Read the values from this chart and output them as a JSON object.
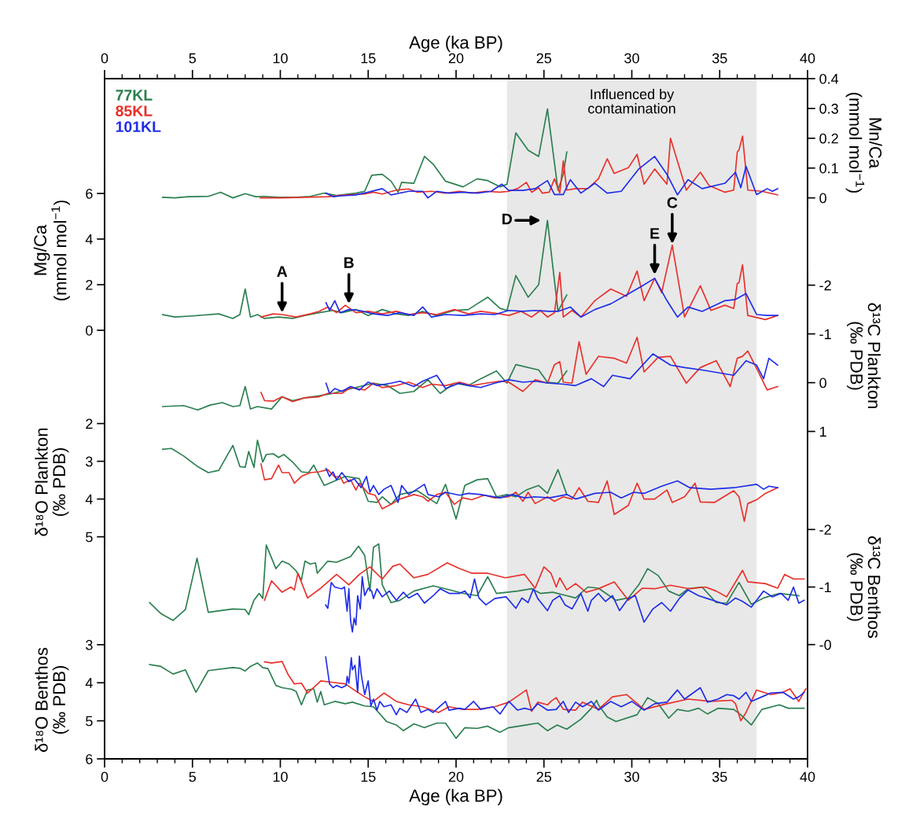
{
  "chart_data": [
    {
      "type": "line",
      "xlabel": "Age (ka BP)",
      "y2label": "Mn/Ca\n(mmol mol$^{−1}$)",
      "xlim": [
        0,
        40
      ],
      "xticks": [
        0,
        5,
        10,
        15,
        20,
        25,
        30,
        35,
        40
      ],
      "y2lim": [
        -0.03,
        0.4
      ],
      "y2ticks": [
        0,
        0.1,
        0.2,
        0.3,
        0.4
      ],
      "legend": "top left",
      "bands": [
        {
          "axis": "x",
          "from": 22.9,
          "to": 37.1,
          "label": "Influenced by\ncontamination",
          "color": "#e8e8e8"
        }
      ],
      "series": [
        {
          "name": "77KL",
          "color": "#2a7f4f",
          "axis": "y2",
          "x": [
            3.3,
            4.0,
            4.75,
            5.9,
            6.6,
            7.3,
            8.0,
            8.6,
            9.1,
            9.9,
            10.9,
            11.7,
            12.5,
            13.2,
            14.3,
            14.8,
            15.2,
            15.8,
            16.3,
            16.7,
            16.9,
            17.6,
            18.2,
            18.7,
            19.4,
            20.4,
            21.2,
            21.8,
            22.5,
            22.9,
            23.4,
            24.1,
            24.7,
            25.2,
            25.8,
            26.1,
            26.3
          ],
          "values": [
            0.002,
            0.0,
            0.004,
            0.005,
            0.019,
            0.0,
            0.014,
            0.004,
            0.005,
            0.002,
            0.002,
            0.005,
            0.016,
            0.008,
            0.016,
            0.022,
            0.076,
            0.079,
            0.056,
            0.019,
            0.052,
            0.049,
            0.139,
            0.113,
            0.056,
            0.037,
            0.064,
            0.058,
            0.037,
            0.046,
            0.218,
            0.16,
            0.139,
            0.298,
            0.026,
            0.079,
            0.154
          ]
        },
        {
          "name": "85KL",
          "color": "#e8302a",
          "axis": "y2",
          "x": [
            8.86,
            10.1,
            11.4,
            12.7,
            13.7,
            14.8,
            15.3,
            15.8,
            16.6,
            17.3,
            17.8,
            18.6,
            19.4,
            20.2,
            20.9,
            21.7,
            22.5,
            23.0,
            23.5,
            24.0,
            24.3,
            24.7,
            24.9,
            25.3,
            25.6,
            25.9,
            26.1,
            26.3,
            26.8,
            27.5,
            28.1,
            28.6,
            29.0,
            29.8,
            30.3,
            30.7,
            31.3,
            32.0,
            32.2,
            33.1,
            33.9,
            34.4,
            35.3,
            35.8,
            36.0,
            36.1,
            36.3,
            36.6,
            37.4,
            38.3
          ],
          "values": [
            0.0,
            0.0,
            0.002,
            0.004,
            0.01,
            0.013,
            0.019,
            0.013,
            0.026,
            0.03,
            0.019,
            0.022,
            0.016,
            0.022,
            0.016,
            0.022,
            0.019,
            0.022,
            0.031,
            0.052,
            0.019,
            0.034,
            0.016,
            0.019,
            0.064,
            0.016,
            0.124,
            0.026,
            0.031,
            0.031,
            0.064,
            0.131,
            0.082,
            0.101,
            0.146,
            0.046,
            0.097,
            0.046,
            0.2,
            0.026,
            0.086,
            0.041,
            0.019,
            0.026,
            0.154,
            0.161,
            0.207,
            0.026,
            0.022,
            0.01
          ]
        },
        {
          "name": "101KL",
          "color": "#1f2de8",
          "axis": "y2",
          "x": [
            12.6,
            13.0,
            13.5,
            14.3,
            15.0,
            15.8,
            16.3,
            17.3,
            18.1,
            18.4,
            18.9,
            19.6,
            20.4,
            21.2,
            22.0,
            22.6,
            23.0,
            23.8,
            24.5,
            25.2,
            25.6,
            26.1,
            26.5,
            27.1,
            27.9,
            28.6,
            29.4,
            30.4,
            31.3,
            32.0,
            32.6,
            33.2,
            34.0,
            35.3,
            35.9,
            36.2,
            36.5,
            37.1,
            37.7,
            38.0,
            38.3
          ],
          "values": [
            0.016,
            0.004,
            0.007,
            0.01,
            0.019,
            0.031,
            0.01,
            0.022,
            0.022,
            0.0,
            0.022,
            0.016,
            0.019,
            0.016,
            0.022,
            0.046,
            0.025,
            0.025,
            0.031,
            0.058,
            0.011,
            0.011,
            0.061,
            0.016,
            0.049,
            0.016,
            0.022,
            0.097,
            0.139,
            0.079,
            0.01,
            0.061,
            0.031,
            0.049,
            0.086,
            0.034,
            0.106,
            0.011,
            0.031,
            0.022,
            0.031
          ]
        }
      ]
    },
    {
      "type": "line",
      "ylabel": "Mg/Ca\n(mmol mol$^{−1}$)",
      "xlim": [
        0,
        40
      ],
      "ylim": [
        0,
        7
      ],
      "yticks": [
        0,
        2,
        4,
        6
      ],
      "tick_labels": "y",
      "annotations": [
        {
          "text": "A",
          "x": 10.1,
          "y": 0.77
        },
        {
          "text": "B",
          "x": 13.9,
          "y": 1.16
        },
        {
          "text": "D",
          "x": 25.2,
          "y": 4.82
        },
        {
          "text": "E",
          "x": 31.3,
          "y": 2.44
        },
        {
          "text": "C",
          "x": 32.3,
          "y": 3.79
        }
      ],
      "series": [
        {
          "color": "#2a7f4f",
          "x": [
            3.3,
            4.0,
            5.0,
            6.5,
            7.3,
            7.7,
            8.0,
            8.3,
            8.7,
            9.1,
            9.9,
            10.7,
            11.4,
            12.2,
            13.0,
            13.5,
            14.3,
            15.0,
            15.8,
            16.6,
            17.3,
            18.1,
            18.9,
            19.9,
            20.7,
            21.2,
            21.8,
            22.5,
            22.9,
            23.4,
            24.1,
            24.7,
            25.2,
            25.8,
            26.3
          ],
          "values": [
            0.69,
            0.58,
            0.63,
            0.72,
            0.52,
            0.69,
            1.81,
            0.58,
            0.69,
            0.52,
            0.58,
            0.52,
            0.65,
            0.77,
            0.87,
            0.77,
            0.91,
            0.65,
            0.91,
            0.72,
            0.65,
            0.83,
            0.65,
            0.87,
            0.91,
            1.16,
            1.45,
            0.96,
            0.87,
            2.4,
            1.45,
            2.0,
            4.82,
            0.83,
            1.55
          ]
        },
        {
          "color": "#e8302a",
          "x": [
            8.9,
            9.6,
            10.1,
            10.9,
            11.7,
            12.2,
            12.7,
            13.2,
            13.7,
            14.3,
            15.0,
            15.8,
            16.6,
            17.3,
            18.1,
            18.9,
            19.9,
            20.7,
            21.4,
            22.5,
            23.0,
            23.7,
            24.3,
            24.8,
            25.2,
            25.6,
            25.9,
            26.1,
            26.6,
            27.1,
            27.9,
            28.8,
            29.7,
            30.3,
            30.7,
            31.3,
            31.7,
            32.3,
            33.0,
            33.9,
            34.5,
            35.3,
            35.8,
            36.0,
            36.1,
            36.3,
            36.6,
            37.6,
            38.3
          ],
          "values": [
            0.58,
            0.72,
            0.69,
            0.58,
            0.72,
            0.83,
            1.02,
            0.77,
            1.1,
            0.77,
            0.83,
            0.72,
            0.83,
            0.69,
            0.77,
            0.69,
            0.91,
            0.72,
            0.83,
            0.72,
            0.65,
            0.83,
            0.58,
            0.87,
            0.58,
            0.77,
            2.54,
            0.58,
            0.87,
            0.58,
            1.3,
            1.81,
            1.49,
            2.6,
            1.3,
            2.28,
            1.65,
            3.73,
            0.58,
            1.95,
            0.87,
            1.1,
            0.96,
            2.05,
            2.09,
            2.87,
            0.65,
            0.47,
            0.65
          ]
        },
        {
          "color": "#1f2de8",
          "x": [
            12.6,
            12.8,
            13.1,
            13.4,
            13.9,
            14.5,
            15.3,
            16.1,
            16.8,
            17.6,
            18.1,
            18.6,
            19.4,
            20.4,
            21.4,
            22.2,
            23.0,
            23.8,
            24.5,
            25.3,
            25.8,
            26.5,
            27.1,
            27.9,
            28.8,
            29.7,
            30.6,
            31.3,
            32.0,
            32.6,
            33.2,
            34.0,
            35.3,
            35.9,
            36.5,
            37.1,
            37.7,
            38.3
          ],
          "values": [
            1.21,
            0.87,
            1.3,
            0.77,
            0.91,
            0.87,
            0.72,
            0.65,
            0.77,
            0.65,
            1.02,
            0.58,
            0.69,
            0.65,
            0.72,
            0.69,
            0.87,
            0.83,
            0.87,
            0.83,
            0.83,
            1.02,
            0.58,
            0.91,
            1.16,
            1.55,
            1.95,
            2.28,
            1.3,
            0.58,
            1.02,
            0.83,
            1.3,
            1.35,
            1.61,
            0.69,
            0.65,
            0.65
          ]
        }
      ]
    },
    {
      "type": "line",
      "y2label": "δ¹³C Plankton\n(‰ PDB)",
      "xlim": [
        0,
        40
      ],
      "y2lim": [
        1.2,
        -2.3
      ],
      "y2ticks": [
        -2,
        -1,
        0,
        1
      ],
      "tick_labels": "y",
      "series": [
        {
          "color": "#2a7f4f",
          "axis": "y2",
          "x": [
            3.3,
            4.5,
            5.3,
            6.0,
            6.7,
            7.3,
            7.7,
            8.0,
            8.3,
            8.7,
            9.5,
            10.1,
            10.7,
            11.4,
            12.2,
            13.0,
            13.7,
            14.3,
            15.3,
            16.1,
            16.8,
            17.6,
            18.4,
            19.1,
            19.9,
            20.7,
            21.4,
            22.3,
            22.9,
            23.4,
            24.7,
            25.2,
            25.8,
            26.3
          ],
          "values": [
            0.49,
            0.47,
            0.56,
            0.46,
            0.41,
            0.49,
            0.47,
            0.08,
            0.54,
            0.49,
            0.54,
            0.29,
            0.37,
            0.31,
            0.27,
            0.22,
            0.15,
            0.1,
            0.01,
            0.06,
            0.22,
            0.18,
            -0.06,
            0.22,
            0.01,
            0.06,
            -0.08,
            -0.24,
            0.01,
            -0.37,
            -0.26,
            -0.01,
            0.01,
            -0.24
          ]
        },
        {
          "color": "#e8302a",
          "axis": "y2",
          "x": [
            8.9,
            9.1,
            9.6,
            10.1,
            10.7,
            11.4,
            12.2,
            12.7,
            13.5,
            14.0,
            14.8,
            15.3,
            15.8,
            16.6,
            17.3,
            18.1,
            18.6,
            19.4,
            20.2,
            20.9,
            21.7,
            22.5,
            23.0,
            23.8,
            24.5,
            25.2,
            25.6,
            25.9,
            26.1,
            26.6,
            27.0,
            27.4,
            28.1,
            29.0,
            29.7,
            30.3,
            30.7,
            31.5,
            32.2,
            33.1,
            33.9,
            34.8,
            35.6,
            36.0,
            36.3,
            36.6,
            37.2,
            37.7,
            38.3
          ],
          "values": [
            0.2,
            0.37,
            0.38,
            0.29,
            0.39,
            0.31,
            0.29,
            0.22,
            0.22,
            0.1,
            0.15,
            0.01,
            0.1,
            0.06,
            -0.01,
            0.1,
            0.03,
            0.06,
            -0.01,
            0.06,
            0.01,
            -0.03,
            -0.01,
            0.18,
            -0.06,
            0.01,
            -0.37,
            -0.43,
            -0.01,
            0.01,
            -0.84,
            -0.17,
            -0.54,
            -0.5,
            -0.4,
            -0.93,
            -0.22,
            -0.52,
            -0.54,
            0.01,
            -0.31,
            -0.45,
            0.08,
            -0.5,
            -0.54,
            -0.65,
            -0.22,
            0.15,
            0.08
          ]
        },
        {
          "color": "#1f2de8",
          "axis": "y2",
          "x": [
            12.6,
            12.8,
            13.1,
            13.5,
            14.0,
            14.5,
            15.0,
            15.5,
            16.3,
            16.8,
            17.6,
            18.1,
            18.9,
            19.4,
            20.2,
            20.7,
            21.4,
            22.2,
            23.0,
            23.8,
            24.5,
            25.3,
            26.1,
            26.8,
            27.7,
            28.4,
            28.9,
            29.9,
            31.2,
            32.2,
            33.0,
            34.0,
            35.8,
            36.5,
            37.1,
            37.5,
            37.8,
            38.3
          ],
          "values": [
            0.01,
            0.22,
            0.12,
            0.18,
            0.08,
            0.15,
            -0.01,
            0.06,
            0.01,
            -0.03,
            0.08,
            -0.03,
            -0.15,
            0.12,
            0.01,
            0.06,
            0.1,
            0.01,
            -0.06,
            -0.01,
            -0.03,
            0.01,
            0.03,
            0.06,
            -0.08,
            0.08,
            -0.15,
            -0.08,
            -0.59,
            -0.36,
            -0.31,
            -0.26,
            -0.15,
            -0.45,
            -0.36,
            -0.08,
            -0.5,
            -0.36
          ]
        }
      ]
    },
    {
      "type": "line",
      "ylabel": "δ¹⁸O Plankton\n(‰ PDB)",
      "xlim": [
        0,
        40
      ],
      "ylim": [
        5.3,
        1.8
      ],
      "yticks": [
        2,
        3,
        4,
        5
      ],
      "tick_labels": "y",
      "series": [
        {
          "color": "#2a7f4f",
          "x": [
            3.3,
            3.8,
            4.5,
            5.3,
            5.9,
            6.5,
            7.3,
            7.7,
            8.0,
            8.2,
            8.5,
            8.7,
            9.0,
            9.2,
            9.6,
            9.9,
            10.2,
            10.7,
            11.2,
            11.6,
            11.9,
            12.5,
            13.0,
            13.7,
            14.5,
            15.0,
            15.5,
            15.8,
            16.3,
            16.8,
            17.8,
            18.9,
            19.4,
            20.0,
            20.5,
            21.2,
            21.8,
            22.3,
            22.9,
            23.4,
            24.0,
            24.7,
            25.2,
            25.8,
            26.3
          ],
          "values": [
            2.68,
            2.66,
            2.86,
            3.14,
            3.3,
            3.24,
            2.58,
            3.14,
            3.16,
            2.74,
            3.16,
            2.44,
            3.02,
            2.82,
            2.8,
            2.9,
            2.82,
            3.02,
            3.28,
            3.3,
            3.1,
            3.64,
            3.54,
            3.4,
            3.46,
            4.06,
            4.09,
            3.94,
            4.14,
            3.88,
            3.78,
            4.12,
            3.61,
            4.53,
            3.64,
            3.49,
            3.46,
            3.94,
            3.88,
            3.94,
            3.76,
            3.64,
            3.85,
            3.22,
            3.88
          ]
        },
        {
          "color": "#e8302a",
          "x": [
            8.9,
            9.1,
            9.5,
            9.9,
            10.1,
            10.5,
            10.8,
            11.2,
            11.7,
            12.2,
            12.7,
            13.1,
            13.4,
            13.6,
            14.0,
            14.3,
            14.5,
            15.0,
            15.4,
            15.8,
            16.3,
            16.8,
            17.6,
            18.1,
            18.4,
            18.9,
            19.4,
            19.9,
            20.4,
            20.9,
            21.6,
            22.2,
            23.0,
            23.4,
            23.8,
            24.1,
            24.5,
            25.2,
            25.6,
            26.1,
            26.6,
            27.0,
            27.5,
            28.1,
            28.6,
            29.0,
            29.8,
            30.3,
            30.7,
            31.3,
            32.0,
            32.3,
            33.0,
            33.6,
            33.9,
            34.7,
            35.8,
            36.1,
            36.4,
            36.6,
            37.1,
            37.6,
            38.3
          ],
          "values": [
            3.07,
            3.49,
            3.46,
            3.1,
            3.3,
            3.3,
            3.58,
            3.4,
            3.3,
            3.28,
            3.22,
            3.42,
            3.4,
            3.58,
            3.49,
            3.76,
            3.58,
            3.85,
            3.9,
            4.26,
            4.14,
            4.0,
            3.88,
            3.94,
            4.06,
            3.88,
            3.82,
            4.14,
            3.97,
            4.02,
            3.9,
            3.97,
            3.94,
            3.82,
            4.06,
            3.82,
            4.12,
            3.94,
            4.06,
            3.94,
            4.0,
            3.7,
            4.06,
            4.09,
            3.52,
            4.41,
            4.17,
            3.58,
            4.0,
            4.0,
            3.76,
            4.09,
            3.94,
            3.58,
            4.08,
            4.09,
            3.78,
            3.94,
            4.59,
            4.12,
            4.02,
            3.85,
            3.7
          ]
        },
        {
          "color": "#1f2de8",
          "x": [
            12.6,
            12.8,
            13.0,
            13.2,
            13.5,
            13.9,
            14.2,
            14.6,
            14.9,
            15.1,
            15.3,
            15.6,
            15.9,
            16.3,
            16.7,
            16.9,
            17.3,
            18.2,
            18.4,
            19.0,
            19.4,
            20.2,
            20.7,
            21.4,
            22.5,
            23.2,
            23.9,
            24.5,
            25.3,
            26.3,
            26.8,
            27.9,
            28.8,
            29.4,
            30.1,
            30.7,
            31.7,
            32.6,
            33.3,
            34.5,
            35.8,
            37.1,
            37.5,
            37.8,
            38.3
          ],
          "values": [
            3.19,
            3.4,
            3.28,
            3.49,
            3.3,
            3.54,
            3.46,
            3.7,
            3.4,
            3.82,
            3.64,
            3.88,
            3.74,
            3.64,
            4.09,
            3.64,
            3.88,
            3.61,
            3.88,
            3.94,
            3.82,
            3.9,
            3.85,
            3.88,
            3.97,
            3.88,
            3.97,
            3.94,
            3.97,
            3.88,
            4.0,
            3.85,
            3.82,
            3.97,
            3.82,
            3.85,
            3.66,
            3.52,
            3.7,
            3.74,
            3.7,
            3.61,
            3.74,
            3.66,
            3.7
          ]
        }
      ]
    },
    {
      "type": "line",
      "y2label": "δ¹³C Benthos\n(‰ PDB)",
      "xlim": [
        0,
        40
      ],
      "y2lim": [
        0.1,
        -2.1
      ],
      "y2ticks": [
        -2,
        -1,
        {
          "value": 0,
          "label": "-0"
        }
      ],
      "tick_labels": "y",
      "series": [
        {
          "color": "#2a7f4f",
          "axis": "y2",
          "x": [
            2.56,
            3.2,
            3.9,
            4.6,
            5.26,
            5.9,
            7.3,
            8.0,
            8.2,
            8.5,
            8.8,
            9.0,
            9.2,
            9.75,
            10.1,
            10.5,
            10.9,
            11.2,
            11.4,
            11.7,
            12.0,
            12.1,
            12.7,
            13.2,
            14.0,
            14.45,
            14.8,
            15.1,
            15.3,
            15.6,
            15.8,
            16.3,
            16.8,
            17.6,
            18.7,
            19.4,
            20.4,
            21.2,
            21.8,
            22.3,
            23.5,
            24.3,
            24.8,
            25.5,
            26.3,
            26.8,
            27.5,
            28.1,
            29.1,
            29.8,
            30.4,
            30.9,
            31.5,
            32.1,
            32.7,
            33.2,
            34.0,
            34.8,
            35.4,
            36.1,
            36.8,
            37.5,
            38.4,
            39.5
          ],
          "values": [
            -0.73,
            -0.54,
            -0.42,
            -0.61,
            -1.5,
            -0.56,
            -0.62,
            -0.61,
            -0.52,
            -0.77,
            -0.89,
            -0.8,
            -1.73,
            -1.32,
            -1.45,
            -1.4,
            -1.28,
            -1.12,
            -1.45,
            -1.4,
            -1.42,
            -1.24,
            -1.45,
            -1.43,
            -1.53,
            -1.71,
            -1.55,
            -0.93,
            -1.69,
            -1.75,
            -1.04,
            -0.73,
            -0.77,
            -0.93,
            -1.02,
            -0.97,
            -0.89,
            -0.85,
            -1.18,
            -0.89,
            -0.93,
            -0.97,
            -0.89,
            -0.91,
            -0.85,
            -0.81,
            -1.0,
            -0.98,
            -0.77,
            -0.81,
            -1.04,
            -1.32,
            -1.2,
            -0.93,
            -0.85,
            -0.97,
            -1.0,
            -0.73,
            -0.72,
            -1.08,
            -0.7,
            -0.81,
            -0.89,
            -0.85
          ]
        },
        {
          "color": "#e8302a",
          "axis": "y2",
          "x": [
            9.1,
            9.5,
            10.1,
            10.6,
            10.8,
            11.0,
            11.55,
            12.3,
            13.2,
            13.9,
            14.5,
            15.1,
            15.8,
            16.4,
            16.8,
            17.6,
            18.4,
            19.5,
            20.2,
            20.9,
            21.8,
            22.8,
            23.9,
            24.5,
            25.0,
            25.4,
            25.7,
            25.9,
            26.3,
            26.8,
            27.4,
            28.1,
            29.0,
            29.8,
            30.6,
            31.3,
            32.2,
            33.3,
            34.2,
            34.8,
            35.4,
            36.3,
            36.6,
            37.6,
            38.3,
            38.7,
            39.2,
            39.8
          ],
          "values": [
            -0.77,
            -1.11,
            -0.91,
            -1.0,
            -0.95,
            -1.24,
            -0.81,
            -0.98,
            -1.22,
            -1.04,
            -1.22,
            -1.35,
            -1.14,
            -1.36,
            -1.4,
            -1.16,
            -1.22,
            -1.42,
            -1.32,
            -1.24,
            -1.24,
            -1.16,
            -1.22,
            -0.98,
            -1.35,
            -1.24,
            -1.0,
            -1.16,
            -0.95,
            -1.06,
            -0.91,
            -0.97,
            -1.09,
            -0.77,
            -0.98,
            -0.97,
            -1.03,
            -0.97,
            -1.0,
            -0.93,
            -0.83,
            -1.29,
            -1.09,
            -1.06,
            -0.98,
            -1.22,
            -1.14,
            -1.14
          ]
        },
        {
          "color": "#1f2de8",
          "axis": "y2",
          "x": [
            12.58,
            12.7,
            12.9,
            13.1,
            13.35,
            13.5,
            13.65,
            13.8,
            13.9,
            14.0,
            14.1,
            14.2,
            14.3,
            14.4,
            14.55,
            14.66,
            14.8,
            15.0,
            15.2,
            15.3,
            15.5,
            15.8,
            16.2,
            16.6,
            17.0,
            17.3,
            17.8,
            18.2,
            18.7,
            19.1,
            19.6,
            20.2,
            20.5,
            20.8,
            21.05,
            21.3,
            21.7,
            22.2,
            22.85,
            23.4,
            23.75,
            24.1,
            24.4,
            24.65,
            25.2,
            25.5,
            25.9,
            26.2,
            26.6,
            27.1,
            27.5,
            27.7,
            28.1,
            28.5,
            28.9,
            29.3,
            29.8,
            30.2,
            30.7,
            31.2,
            31.7,
            32.2,
            32.7,
            33.2,
            33.8,
            34.3,
            34.8,
            35.4,
            35.9,
            36.3,
            36.8,
            37.5,
            38.0,
            38.5,
            38.9,
            39.2,
            39.5,
            39.8
          ],
          "values": [
            -0.69,
            -0.63,
            -1.08,
            -1.0,
            -0.98,
            -0.97,
            -1.0,
            -0.58,
            -0.97,
            -0.41,
            -0.22,
            -0.46,
            -0.34,
            -0.85,
            -0.62,
            -1.18,
            -0.85,
            -0.98,
            -0.93,
            -0.8,
            -0.97,
            -0.83,
            -0.93,
            -0.77,
            -0.91,
            -0.81,
            -0.89,
            -0.72,
            -0.85,
            -0.97,
            -0.89,
            -0.89,
            -0.93,
            -0.81,
            -1.14,
            -0.81,
            -0.69,
            -0.8,
            -0.83,
            -0.63,
            -0.81,
            -0.73,
            -0.97,
            -0.8,
            -0.59,
            -0.77,
            -0.85,
            -0.69,
            -0.62,
            -0.89,
            -0.58,
            -0.77,
            -0.89,
            -0.75,
            -0.85,
            -0.59,
            -0.8,
            -0.85,
            -0.39,
            -0.62,
            -0.73,
            -0.58,
            -0.8,
            -0.95,
            -0.85,
            -0.8,
            -0.75,
            -0.69,
            -0.81,
            -0.75,
            -0.65,
            -0.93,
            -0.83,
            -0.89,
            -0.77,
            -1.0,
            -0.72,
            -0.77
          ]
        }
      ]
    },
    {
      "type": "line",
      "xlabel": "Age (ka BP)",
      "ylabel": "δ¹⁸O Benthos\n(‰ PDB)",
      "xlim": [
        0,
        40
      ],
      "xticks": [
        0,
        5,
        10,
        15,
        20,
        25,
        30,
        35,
        40
      ],
      "ylim": [
        6,
        2.9
      ],
      "yticks": [
        3,
        4,
        5,
        6
      ],
      "series": [
        {
          "color": "#2a7f4f",
          "x": [
            2.56,
            3.2,
            3.9,
            4.6,
            5.2,
            5.9,
            7.3,
            7.7,
            8.0,
            8.3,
            8.7,
            9.0,
            9.3,
            9.75,
            10.1,
            10.65,
            10.9,
            11.2,
            11.55,
            11.9,
            12.1,
            12.3,
            12.5,
            13.1,
            13.7,
            14.1,
            14.8,
            15.3,
            16.05,
            16.6,
            17.0,
            17.6,
            18.2,
            18.9,
            19.4,
            20.0,
            20.5,
            21.2,
            21.8,
            22.5,
            23.0,
            24.0,
            24.65,
            25.2,
            25.75,
            26.3,
            27.1,
            27.7,
            28.0,
            28.1,
            28.6,
            29.1,
            30.3,
            30.9,
            31.5,
            32.1,
            32.6,
            33.2,
            33.8,
            34.3,
            34.9,
            35.8,
            36.2,
            36.8,
            37.4,
            38.4,
            38.9,
            39.8
          ],
          "values": [
            3.52,
            3.57,
            3.77,
            3.66,
            4.25,
            3.68,
            3.6,
            3.62,
            3.69,
            3.57,
            3.48,
            3.6,
            3.63,
            4.07,
            4.13,
            4.17,
            4.23,
            4.58,
            4.19,
            4.16,
            4.51,
            4.23,
            4.58,
            4.49,
            4.55,
            4.51,
            4.61,
            4.63,
            5.02,
            5.11,
            5.26,
            5.08,
            5.18,
            5.06,
            5.06,
            5.46,
            5.18,
            5.2,
            5.14,
            5.3,
            5.18,
            5.11,
            5.06,
            5.26,
            5.11,
            5.22,
            4.96,
            4.67,
            4.46,
            4.58,
            4.9,
            5.02,
            4.84,
            4.39,
            4.55,
            4.93,
            4.7,
            4.75,
            4.67,
            4.82,
            4.67,
            4.7,
            4.84,
            5.11,
            4.7,
            4.58,
            4.67,
            4.67
          ]
        },
        {
          "color": "#e8302a",
          "x": [
            9.1,
            9.5,
            10.1,
            10.45,
            10.8,
            11.2,
            11.55,
            11.8,
            12.3,
            13.0,
            13.7,
            14.2,
            14.8,
            15.3,
            15.9,
            16.6,
            17.3,
            18.1,
            19.0,
            19.6,
            20.4,
            21.2,
            22.2,
            23.0,
            24.0,
            24.3,
            24.65,
            25.2,
            25.4,
            25.7,
            26.1,
            26.8,
            27.2,
            28.1,
            28.9,
            29.7,
            30.7,
            32.0,
            33.2,
            34.5,
            35.7,
            35.9,
            36.2,
            36.5,
            37.1,
            37.9,
            38.6,
            39.0,
            39.5,
            39.9
          ],
          "values": [
            3.45,
            3.48,
            3.44,
            3.79,
            4.03,
            4.01,
            4.27,
            4.17,
            3.95,
            3.99,
            4.03,
            4.19,
            4.37,
            4.49,
            4.27,
            4.49,
            4.58,
            4.63,
            4.78,
            4.63,
            4.7,
            4.7,
            4.63,
            4.51,
            4.19,
            4.75,
            4.51,
            4.58,
            4.49,
            4.39,
            4.7,
            4.72,
            4.51,
            4.7,
            4.37,
            4.31,
            4.7,
            4.55,
            4.43,
            4.49,
            4.46,
            4.55,
            5.0,
            4.78,
            4.19,
            4.31,
            4.25,
            4.16,
            4.49,
            4.16
          ]
        },
        {
          "color": "#1f2de8",
          "x": [
            12.58,
            12.8,
            13.0,
            13.2,
            13.5,
            13.75,
            13.8,
            13.9,
            14.04,
            14.1,
            14.25,
            14.4,
            14.5,
            14.6,
            14.8,
            15.0,
            15.15,
            15.3,
            15.5,
            15.66,
            15.9,
            16.3,
            16.6,
            16.8,
            17.2,
            17.7,
            18.0,
            18.4,
            18.7,
            19.4,
            19.6,
            20.2,
            20.5,
            21.0,
            21.4,
            22.1,
            22.5,
            23.0,
            23.5,
            23.9,
            24.3,
            24.65,
            25.2,
            25.7,
            26.1,
            26.4,
            26.8,
            27.2,
            27.7,
            28.1,
            28.8,
            29.4,
            30.0,
            30.7,
            31.3,
            32.0,
            32.6,
            33.0,
            33.9,
            34.3,
            34.9,
            35.4,
            35.8,
            36.1,
            36.5,
            36.8,
            37.4,
            37.9,
            38.6,
            39.2,
            39.5,
            39.8
          ],
          "values": [
            3.32,
            4.03,
            4.13,
            4.07,
            4.13,
            4.07,
            3.83,
            4.01,
            3.34,
            3.66,
            3.54,
            4.25,
            3.3,
            3.77,
            4.31,
            3.95,
            4.61,
            4.43,
            4.72,
            4.49,
            4.63,
            4.58,
            4.84,
            4.67,
            4.78,
            4.43,
            4.78,
            4.7,
            4.78,
            4.49,
            4.72,
            4.67,
            4.7,
            4.49,
            4.7,
            4.63,
            4.82,
            4.49,
            4.72,
            4.67,
            4.72,
            4.55,
            4.72,
            4.7,
            4.49,
            4.78,
            4.51,
            4.63,
            4.49,
            4.72,
            4.49,
            4.63,
            4.49,
            4.72,
            4.55,
            4.51,
            4.19,
            4.43,
            4.13,
            4.51,
            4.43,
            4.31,
            4.34,
            4.43,
            4.25,
            4.49,
            4.37,
            4.27,
            4.25,
            4.43,
            4.37,
            4.25
          ]
        }
      ]
    }
  ]
}
